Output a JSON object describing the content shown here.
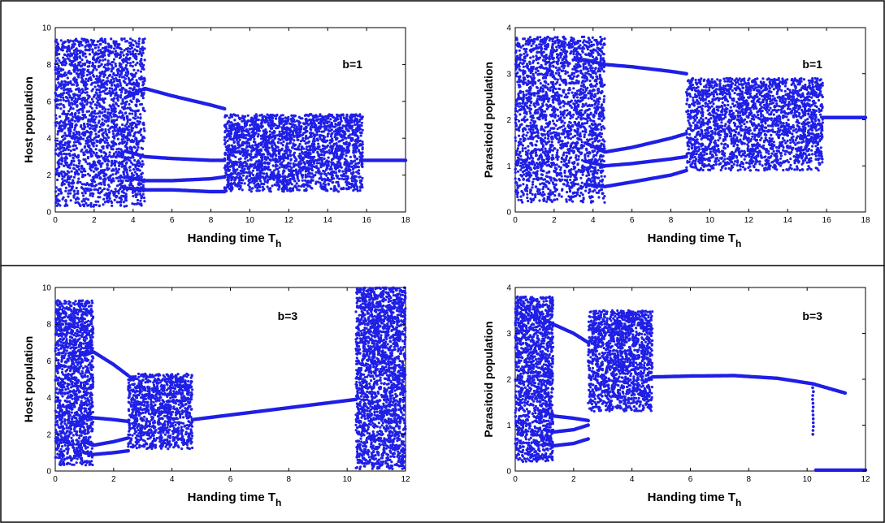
{
  "chart_data": [
    {
      "type": "scatter",
      "annotation": "b=1",
      "xlabel": "Handing time T",
      "xlabel_sub": "h",
      "ylabel": "Host population",
      "xlim": [
        0,
        18
      ],
      "ylim": [
        0,
        10
      ],
      "xticks": [
        0,
        2,
        4,
        6,
        8,
        10,
        12,
        14,
        16,
        18
      ],
      "yticks": [
        0,
        2,
        4,
        6,
        8,
        10
      ],
      "color": "#1f1fe6",
      "grid": false,
      "bifurcation": {
        "chaos_regions": [
          [
            0,
            4.6,
            0.3,
            9.4
          ],
          [
            8.7,
            15.8,
            1.1,
            5.3
          ]
        ],
        "branches": [
          {
            "x": [
              3.6,
              4.6,
              6,
              8,
              8.7
            ],
            "y": [
              6.2,
              6.7,
              6.3,
              5.8,
              5.6
            ]
          },
          {
            "x": [
              3.6,
              4.6,
              6,
              8,
              8.7
            ],
            "y": [
              3.3,
              3.0,
              2.9,
              2.8,
              2.8
            ]
          },
          {
            "x": [
              3.6,
              4.6,
              6,
              8,
              8.7
            ],
            "y": [
              1.9,
              1.7,
              1.7,
              1.8,
              1.9
            ]
          },
          {
            "x": [
              3.6,
              4.6,
              6,
              8,
              8.7
            ],
            "y": [
              1.3,
              1.2,
              1.2,
              1.1,
              1.1
            ]
          },
          {
            "x": [
              15.8,
              18
            ],
            "y": [
              2.8,
              2.8
            ]
          }
        ]
      }
    },
    {
      "type": "scatter",
      "annotation": "b=1",
      "xlabel": "Handing time T",
      "xlabel_sub": "h",
      "ylabel": "Parasitoid population",
      "xlim": [
        0,
        18
      ],
      "ylim": [
        0,
        4
      ],
      "xticks": [
        0,
        2,
        4,
        6,
        8,
        10,
        12,
        14,
        16,
        18
      ],
      "yticks": [
        0,
        1,
        2,
        3,
        4
      ],
      "color": "#1f1fe6",
      "grid": false,
      "bifurcation": {
        "chaos_regions": [
          [
            0,
            4.6,
            0.2,
            3.8
          ],
          [
            8.8,
            15.8,
            0.9,
            2.9
          ]
        ],
        "branches": [
          {
            "x": [
              3.6,
              4.6,
              6,
              8,
              8.8
            ],
            "y": [
              3.3,
              3.2,
              3.15,
              3.05,
              3.0
            ]
          },
          {
            "x": [
              3.6,
              4.6,
              6,
              8,
              8.8
            ],
            "y": [
              1.5,
              1.3,
              1.4,
              1.6,
              1.7
            ]
          },
          {
            "x": [
              3.6,
              4.6,
              6,
              8,
              8.8
            ],
            "y": [
              1.1,
              1.0,
              1.05,
              1.15,
              1.2
            ]
          },
          {
            "x": [
              3.6,
              4.6,
              6,
              8,
              8.8
            ],
            "y": [
              0.6,
              0.55,
              0.65,
              0.8,
              0.9
            ]
          },
          {
            "x": [
              15.8,
              18
            ],
            "y": [
              2.05,
              2.05
            ]
          }
        ]
      }
    },
    {
      "type": "scatter",
      "annotation": "b=3",
      "xlabel": "Handing time T",
      "xlabel_sub": "h",
      "ylabel": "Host population",
      "xlim": [
        0,
        12
      ],
      "ylim": [
        0,
        10
      ],
      "xticks": [
        0,
        2,
        4,
        6,
        8,
        10,
        12
      ],
      "yticks": [
        0,
        2,
        4,
        6,
        8,
        10
      ],
      "color": "#1f1fe6",
      "grid": false,
      "bifurcation": {
        "chaos_regions": [
          [
            0,
            1.3,
            0.3,
            9.3
          ],
          [
            2.5,
            4.7,
            1.2,
            5.3
          ],
          [
            10.3,
            12,
            0.1,
            10
          ]
        ],
        "branches": [
          {
            "x": [
              1.0,
              1.3,
              2.0,
              2.5
            ],
            "y": [
              6.3,
              6.5,
              5.8,
              5.2
            ]
          },
          {
            "x": [
              1.0,
              1.3,
              2.0,
              2.5
            ],
            "y": [
              3.0,
              2.9,
              2.8,
              2.7
            ]
          },
          {
            "x": [
              1.0,
              1.3,
              2.0,
              2.5
            ],
            "y": [
              1.6,
              1.4,
              1.6,
              1.8
            ]
          },
          {
            "x": [
              1.0,
              1.3,
              2.0,
              2.5
            ],
            "y": [
              1.0,
              0.9,
              1.0,
              1.1
            ]
          },
          {
            "x": [
              4.7,
              10.3
            ],
            "y": [
              2.8,
              3.9
            ]
          }
        ]
      }
    },
    {
      "type": "scatter",
      "annotation": "b=3",
      "xlabel": "Handing time T",
      "xlabel_sub": "h",
      "ylabel": "Parasitoid population",
      "xlim": [
        0,
        12
      ],
      "ylim": [
        0,
        4
      ],
      "xticks": [
        0,
        2,
        4,
        6,
        8,
        10,
        12
      ],
      "yticks": [
        0,
        1,
        2,
        3,
        4
      ],
      "color": "#1f1fe6",
      "grid": false,
      "bifurcation": {
        "chaos_regions": [
          [
            0,
            1.3,
            0.2,
            3.8
          ],
          [
            2.5,
            4.7,
            1.3,
            3.5
          ]
        ],
        "branches": [
          {
            "x": [
              1.0,
              1.3,
              2.0,
              2.5
            ],
            "y": [
              3.3,
              3.2,
              3.0,
              2.8
            ]
          },
          {
            "x": [
              1.0,
              1.3,
              2.0,
              2.5
            ],
            "y": [
              1.3,
              1.2,
              1.15,
              1.1
            ]
          },
          {
            "x": [
              1.0,
              1.3,
              2.0,
              2.5
            ],
            "y": [
              0.9,
              0.85,
              0.9,
              1.0
            ]
          },
          {
            "x": [
              1.0,
              1.3,
              2.0,
              2.5
            ],
            "y": [
              0.6,
              0.55,
              0.6,
              0.7
            ]
          },
          {
            "x": [
              4.7,
              6,
              7.5,
              9,
              10.2,
              11.3
            ],
            "y": [
              2.05,
              2.07,
              2.08,
              2.02,
              1.9,
              1.7
            ]
          },
          {
            "x": [
              10.3,
              12
            ],
            "y": [
              0.02,
              0.02
            ]
          }
        ],
        "drops": [
          {
            "x": 10.2,
            "y": [
              0.8,
              1.9
            ]
          }
        ]
      }
    }
  ]
}
